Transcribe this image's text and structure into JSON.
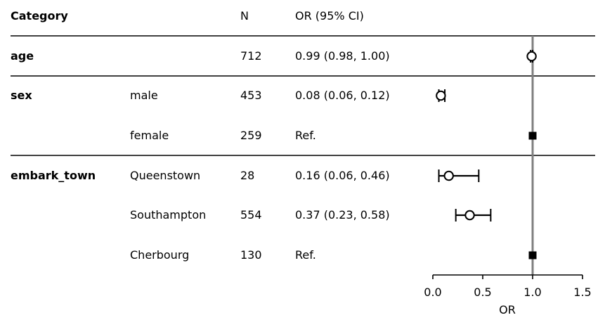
{
  "headers": {
    "category": "Category",
    "n": "N",
    "or_ci": "OR (95% CI)"
  },
  "chart_data": {
    "type": "forest",
    "xlabel": "OR",
    "xlim": [
      0.0,
      1.5
    ],
    "x_ticks": [
      "0.0",
      "0.5",
      "1.0",
      "1.5"
    ],
    "reference_line": 1.0,
    "rows": [
      {
        "category": "age",
        "level": "",
        "n": "712",
        "or_text": "0.99 (0.98, 1.00)",
        "or": 0.99,
        "lo": 0.98,
        "hi": 1.0,
        "ref": false
      },
      {
        "category": "sex",
        "level": "male",
        "n": "453",
        "or_text": "0.08 (0.06, 0.12)",
        "or": 0.08,
        "lo": 0.06,
        "hi": 0.12,
        "ref": false
      },
      {
        "category": "",
        "level": "female",
        "n": "259",
        "or_text": "Ref.",
        "or": 1.0,
        "lo": null,
        "hi": null,
        "ref": true
      },
      {
        "category": "embark_town",
        "level": "Queenstown",
        "n": "28",
        "or_text": "0.16 (0.06, 0.46)",
        "or": 0.16,
        "lo": 0.06,
        "hi": 0.46,
        "ref": false
      },
      {
        "category": "",
        "level": "Southampton",
        "n": "554",
        "or_text": "0.37 (0.23, 0.58)",
        "or": 0.37,
        "lo": 0.23,
        "hi": 0.58,
        "ref": false
      },
      {
        "category": "",
        "level": "Cherbourg",
        "n": "130",
        "or_text": "Ref.",
        "or": 1.0,
        "lo": null,
        "hi": null,
        "ref": true
      }
    ]
  }
}
